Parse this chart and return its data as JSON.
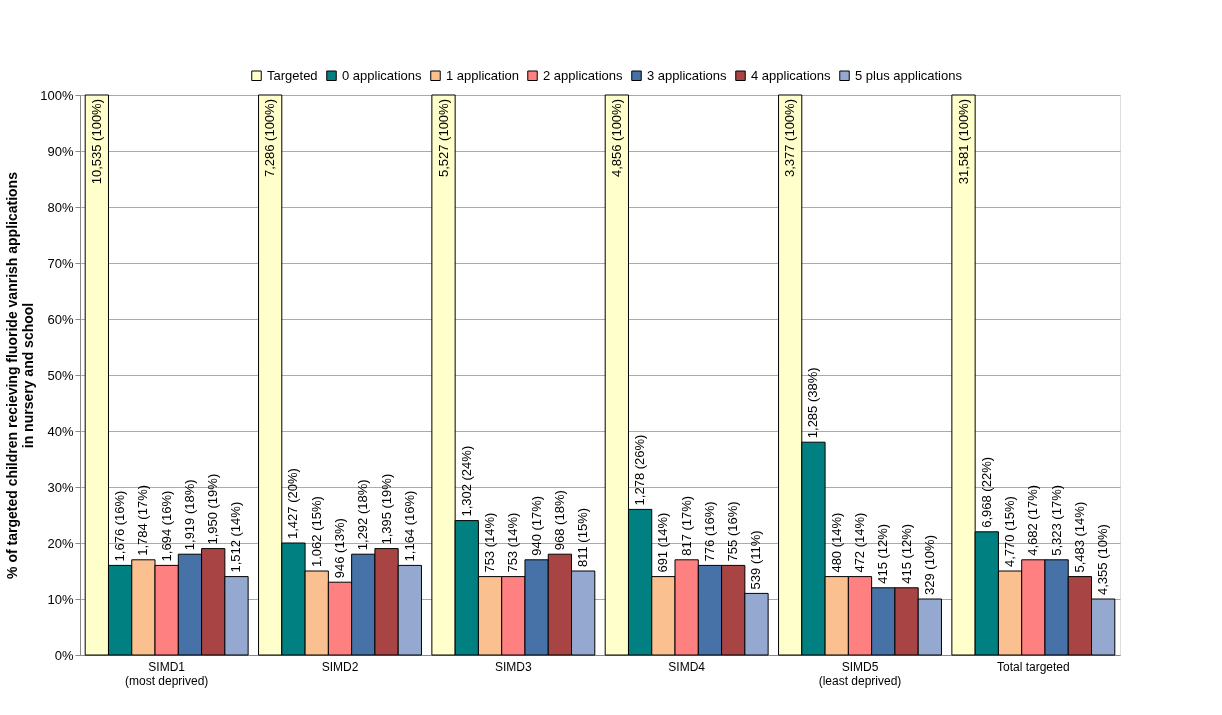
{
  "chart_data": {
    "type": "bar",
    "ylabel": "% of targeted children recieving fluoride vanrish applications\nin nursery and school",
    "categories": [
      "SIMD1\n(most deprived)",
      "SIMD2",
      "SIMD3",
      "SIMD4",
      "SIMD5\n(least deprived)",
      "Total targeted"
    ],
    "ylim": [
      0,
      100
    ],
    "yticks": [
      {
        "value": 0,
        "label": "0%"
      },
      {
        "value": 10,
        "label": "10%"
      },
      {
        "value": 20,
        "label": "20%"
      },
      {
        "value": 30,
        "label": "30%"
      },
      {
        "value": 40,
        "label": "40%"
      },
      {
        "value": 50,
        "label": "50%"
      },
      {
        "value": 60,
        "label": "60%"
      },
      {
        "value": 70,
        "label": "70%"
      },
      {
        "value": 80,
        "label": "80%"
      },
      {
        "value": 90,
        "label": "90%"
      },
      {
        "value": 100,
        "label": "100%"
      }
    ],
    "grid": "y",
    "legend": "top right",
    "series": [
      {
        "name": "Targeted",
        "color": "#ffffcc",
        "values": [
          100,
          100,
          100,
          100,
          100,
          100
        ],
        "value_labels": [
          "10,535 (100%)",
          "7,286 (100%)",
          "5,527 (100%)",
          "4,856 (100%)",
          "3,377 (100%)",
          "31,581 (100%)"
        ]
      },
      {
        "name": "0 applications",
        "color": "#008080",
        "values": [
          16,
          20,
          24,
          26,
          38,
          22
        ],
        "value_labels": [
          "1,676 (16%)",
          "1,427 (20%)",
          "1,302 (24%)",
          "1,278 (26%)",
          "1,285 (38%)",
          "6,968 (22%)"
        ]
      },
      {
        "name": "1 application",
        "color": "#fac090",
        "values": [
          17,
          15,
          14,
          14,
          14,
          15
        ],
        "value_labels": [
          "1,784 (17%)",
          "1,062 (15%)",
          "753 (14%)",
          "691 (14%)",
          "480 (14%)",
          "4,770 (15%)"
        ]
      },
      {
        "name": "2 applications",
        "color": "#ff8080",
        "values": [
          16,
          13,
          14,
          17,
          14,
          17
        ],
        "value_labels": [
          "1,694 (16%)",
          "946 (13%)",
          "753 (14%)",
          "817 (17%)",
          "472 (14%)",
          "4,682 (17%)"
        ]
      },
      {
        "name": "3 applications",
        "color": "#4672a8",
        "values": [
          18,
          18,
          17,
          16,
          12,
          17
        ],
        "value_labels": [
          "1,919 (18%)",
          "1,292 (18%)",
          "940 (17%)",
          "776 (16%)",
          "415 (12%)",
          "5,323 (17%)"
        ]
      },
      {
        "name": "4 applications",
        "color": "#a94444",
        "values": [
          19,
          19,
          18,
          16,
          12,
          14
        ],
        "value_labels": [
          "1,950 (19%)",
          "1,395 (19%)",
          "968 (18%)",
          "755 (16%)",
          "415 (12%)",
          "5,483 (14%)"
        ]
      },
      {
        "name": "5 plus applications",
        "color": "#95a9d0",
        "values": [
          14,
          16,
          15,
          11,
          10,
          10
        ],
        "value_labels": [
          "1,512 (14%)",
          "1,164 (16%)",
          "811 (15%)",
          "539 (11%)",
          "329 (10%)",
          "4,355 (10%)"
        ]
      }
    ]
  }
}
